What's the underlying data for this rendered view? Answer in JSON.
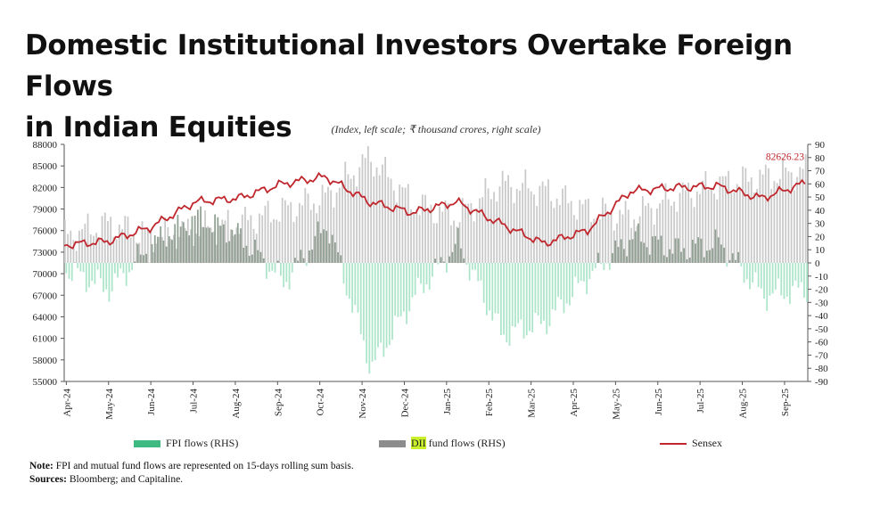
{
  "header": {
    "title_line1": "Domestic Institutional Investors Overtake Foreign Flows",
    "title_line2": "in Indian Equities"
  },
  "chart_data": {
    "type": "bar+line",
    "subtitle": "(Index, left scale; ₹ thousand crores, right scale)",
    "left_axis": {
      "min": 55000,
      "max": 88000,
      "ticks": [
        "55000",
        "58000",
        "61000",
        "64000",
        "67000",
        "70000",
        "73000",
        "76000",
        "79000",
        "82000",
        "85000",
        "88000"
      ]
    },
    "right_axis": {
      "min": -90,
      "max": 90,
      "ticks": [
        "90",
        "80",
        "70",
        "60",
        "50",
        "40",
        "30",
        "20",
        "10",
        "0",
        "-10",
        "-20",
        "-30",
        "-40",
        "-50",
        "-60",
        "-70",
        "-80",
        "-90"
      ]
    },
    "x_labels": [
      "Apr-24",
      "May-24",
      "Jun-24",
      "Jul-24",
      "Aug-24",
      "Sep-24",
      "Oct-24",
      "Nov-24",
      "Dec-24",
      "Jan-25",
      "Feb-25",
      "Mar-25",
      "Apr-25",
      "May-25",
      "Jun-25",
      "Jul-25",
      "Aug-25",
      "Sep-25"
    ],
    "sensex_anchors": [
      74000,
      74500,
      76500,
      80000,
      80500,
      82500,
      83500,
      80000,
      78500,
      80000,
      77000,
      74200,
      76000,
      81500,
      82000,
      82200,
      80500,
      82626
    ],
    "fpi_anchors": [
      -5,
      -20,
      15,
      35,
      20,
      -15,
      30,
      -80,
      -25,
      15,
      -55,
      -45,
      -10,
      20,
      10,
      15,
      -25,
      -20
    ],
    "dii_anchors": [
      20,
      30,
      20,
      25,
      30,
      40,
      50,
      80,
      45,
      35,
      60,
      55,
      40,
      35,
      50,
      60,
      65,
      70
    ],
    "last_value_label": "82626.23",
    "series": [
      {
        "name": "FPI flows (RHS)",
        "color": "#3fba83"
      },
      {
        "name": "DII fund flows (RHS)",
        "color": "#8c8c8c"
      },
      {
        "name": "Sensex",
        "color": "#c0272d"
      }
    ]
  },
  "legend": {
    "fpi_label": "FPI flows (RHS)",
    "dii_prefix": "DII",
    "dii_suffix": " fund flows (RHS)",
    "sensex_label": "Sensex"
  },
  "notes": {
    "note_label": "Note:",
    "note_text": " FPI and mutual fund flows are represented on 15-days rolling sum basis.",
    "sources_label": "Sources:",
    "sources_text": " Bloomberg; and Capitaline."
  }
}
